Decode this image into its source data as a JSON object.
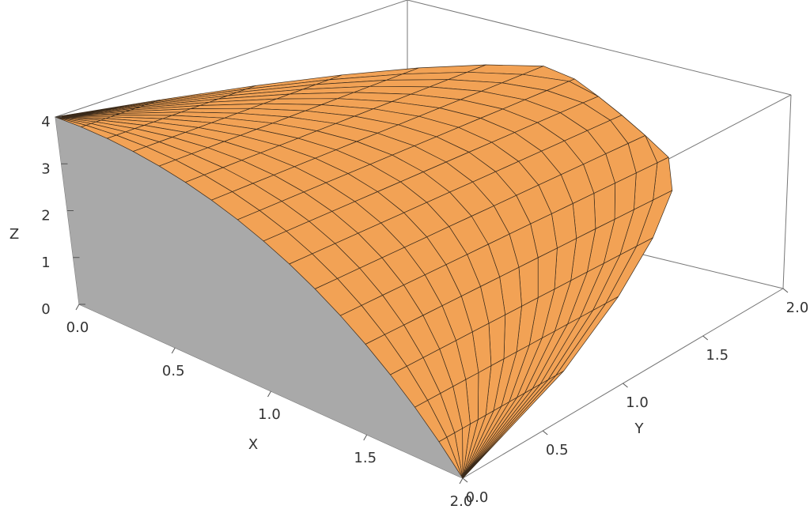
{
  "chart_data": {
    "type": "surface3d",
    "xlabel": "X",
    "ylabel": "Y",
    "zlabel": "Z",
    "xlim": [
      0,
      2
    ],
    "ylim": [
      0,
      2
    ],
    "zlim": [
      0,
      4
    ],
    "xticks": [
      {
        "value": 0,
        "label": "0.0"
      },
      0.5,
      {
        "value": 1,
        "label": "1.0"
      },
      1.5,
      {
        "value": 2,
        "label": "2.0"
      }
    ],
    "yticks": [
      {
        "value": 0,
        "label": "0.0"
      },
      0.5,
      {
        "value": 1,
        "label": "1.0"
      },
      1.5,
      {
        "value": 2,
        "label": "2.0"
      }
    ],
    "zticks": [
      0,
      1,
      2,
      3,
      4
    ],
    "color": "#f2a255",
    "wall_color": "#a9a9a9"
  }
}
